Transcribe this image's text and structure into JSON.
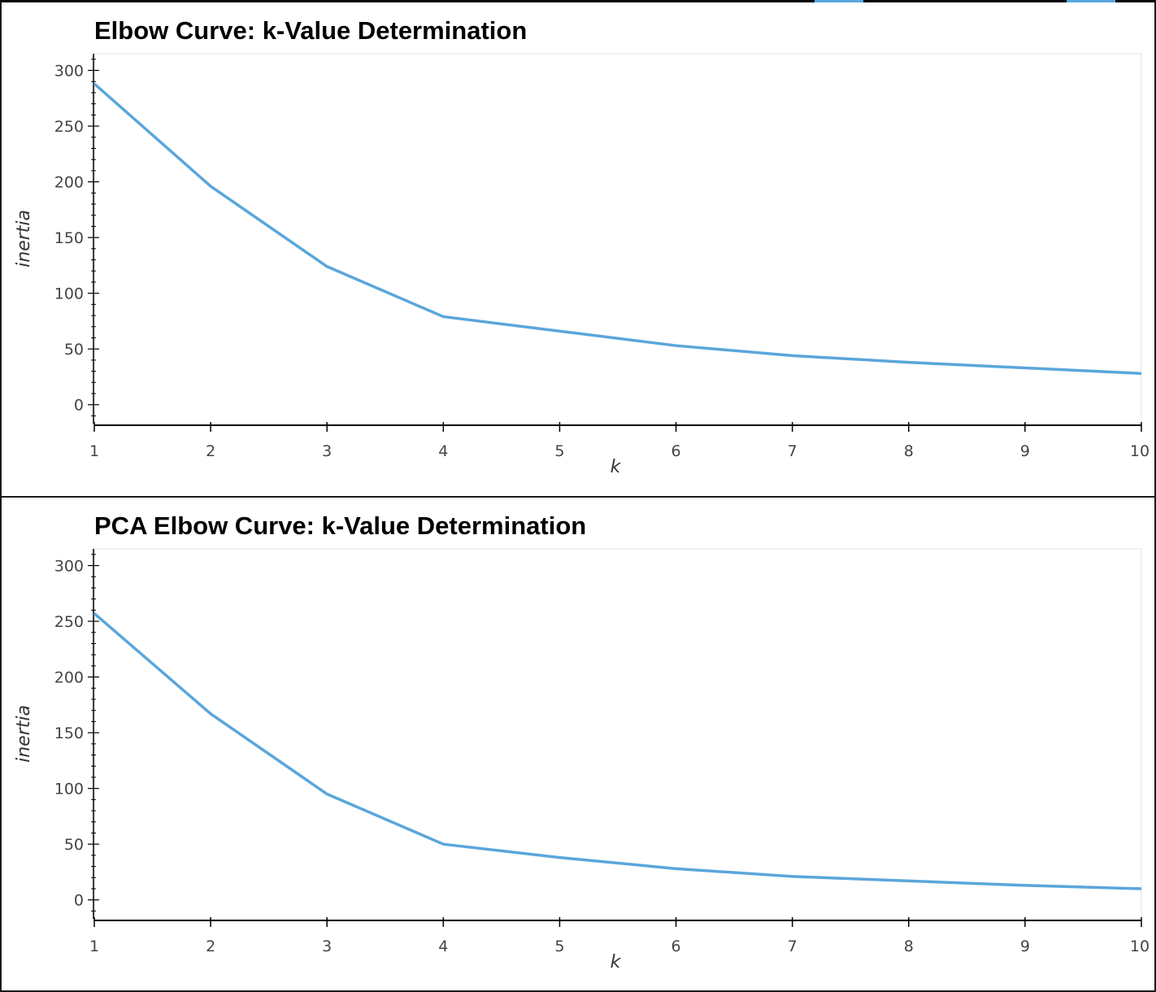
{
  "chart_data": [
    {
      "type": "line",
      "title": "Elbow Curve: k-Value Determination",
      "xlabel": "k",
      "ylabel": "inertia",
      "x": [
        1,
        2,
        3,
        4,
        5,
        6,
        7,
        8,
        9,
        10
      ],
      "series": [
        {
          "values": [
            288,
            196,
            124,
            79,
            66,
            53,
            44,
            38,
            33,
            28
          ]
        }
      ],
      "xlim": [
        1,
        10
      ],
      "ylim": [
        -17,
        315
      ],
      "xticks": [
        "1",
        "2",
        "3",
        "4",
        "5",
        "6",
        "7",
        "8",
        "9",
        "10"
      ],
      "yticks": [
        "0",
        "50",
        "100",
        "150",
        "200",
        "250",
        "300"
      ],
      "line_color": "#5aa6db",
      "grid": false
    },
    {
      "type": "line",
      "title": "PCA Elbow Curve: k-Value Determination",
      "xlabel": "k",
      "ylabel": "inertia",
      "x": [
        1,
        2,
        3,
        4,
        5,
        6,
        7,
        8,
        9,
        10
      ],
      "series": [
        {
          "values": [
            257,
            167,
            95,
            50,
            38,
            28,
            21,
            17,
            13,
            10
          ]
        }
      ],
      "xlim": [
        1,
        10
      ],
      "ylim": [
        -17,
        315
      ],
      "xticks": [
        "1",
        "2",
        "3",
        "4",
        "5",
        "6",
        "7",
        "8",
        "9",
        "10"
      ],
      "yticks": [
        "0",
        "50",
        "100",
        "150",
        "200",
        "250",
        "300"
      ],
      "line_color": "#5aa6db",
      "grid": false
    }
  ]
}
